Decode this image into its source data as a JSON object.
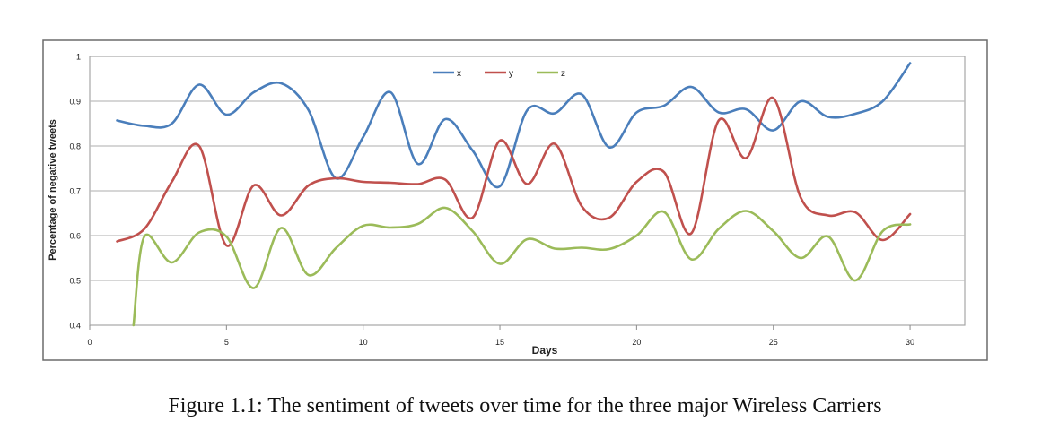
{
  "figure": {
    "caption": "Figure 1.1: The sentiment of tweets over time for the three major Wireless Carriers"
  },
  "chart_data": {
    "type": "line",
    "title": "",
    "xlabel": "Days",
    "ylabel": "Percentage of negative tweets",
    "xlim": [
      0,
      32
    ],
    "ylim": [
      0.4,
      1.0
    ],
    "x_ticks": [
      0,
      5,
      10,
      15,
      20,
      25,
      30
    ],
    "x_tick_labels": [
      "0",
      "5",
      "10",
      "15",
      "20",
      "25",
      "30"
    ],
    "y_ticks": [
      0.4,
      0.5,
      0.6,
      0.7,
      0.8,
      0.9,
      1.0
    ],
    "y_tick_labels": [
      "0.4",
      "0.5",
      "0.6",
      "0.7",
      "0.8",
      "0.9",
      "1"
    ],
    "grid": true,
    "legend_position": "top-center",
    "series": [
      {
        "name": "x",
        "color": "#4a7ebb",
        "points": [
          [
            1,
            0.857
          ],
          [
            2,
            0.845
          ],
          [
            3,
            0.85
          ],
          [
            4,
            0.937
          ],
          [
            5,
            0.87
          ],
          [
            6,
            0.92
          ],
          [
            7,
            0.94
          ],
          [
            8,
            0.88
          ],
          [
            9,
            0.728
          ],
          [
            10,
            0.82
          ],
          [
            11,
            0.92
          ],
          [
            12,
            0.76
          ],
          [
            13,
            0.86
          ],
          [
            14,
            0.79
          ],
          [
            15,
            0.71
          ],
          [
            16,
            0.88
          ],
          [
            17,
            0.873
          ],
          [
            18,
            0.915
          ],
          [
            19,
            0.797
          ],
          [
            20,
            0.875
          ],
          [
            21,
            0.89
          ],
          [
            22,
            0.932
          ],
          [
            23,
            0.875
          ],
          [
            24,
            0.882
          ],
          [
            25,
            0.835
          ],
          [
            26,
            0.9
          ],
          [
            27,
            0.865
          ],
          [
            28,
            0.872
          ],
          [
            29,
            0.9
          ],
          [
            30,
            0.985
          ]
        ]
      },
      {
        "name": "y",
        "color": "#c0504d",
        "points": [
          [
            1,
            0.587
          ],
          [
            2,
            0.615
          ],
          [
            3,
            0.72
          ],
          [
            4,
            0.8
          ],
          [
            5,
            0.578
          ],
          [
            6,
            0.712
          ],
          [
            7,
            0.645
          ],
          [
            8,
            0.712
          ],
          [
            9,
            0.728
          ],
          [
            10,
            0.72
          ],
          [
            11,
            0.718
          ],
          [
            12,
            0.715
          ],
          [
            13,
            0.725
          ],
          [
            14,
            0.64
          ],
          [
            15,
            0.812
          ],
          [
            16,
            0.715
          ],
          [
            17,
            0.805
          ],
          [
            18,
            0.665
          ],
          [
            19,
            0.64
          ],
          [
            20,
            0.72
          ],
          [
            21,
            0.742
          ],
          [
            22,
            0.605
          ],
          [
            23,
            0.857
          ],
          [
            24,
            0.773
          ],
          [
            25,
            0.907
          ],
          [
            26,
            0.685
          ],
          [
            27,
            0.645
          ],
          [
            28,
            0.652
          ],
          [
            29,
            0.59
          ],
          [
            30,
            0.648
          ]
        ]
      },
      {
        "name": "z",
        "color": "#9bbb59",
        "points": [
          [
            1.6,
            0.4
          ],
          [
            2,
            0.598
          ],
          [
            3,
            0.54
          ],
          [
            4,
            0.607
          ],
          [
            5,
            0.598
          ],
          [
            6,
            0.483
          ],
          [
            7,
            0.617
          ],
          [
            8,
            0.512
          ],
          [
            9,
            0.572
          ],
          [
            10,
            0.622
          ],
          [
            11,
            0.618
          ],
          [
            12,
            0.626
          ],
          [
            13,
            0.662
          ],
          [
            14,
            0.61
          ],
          [
            15,
            0.537
          ],
          [
            16,
            0.592
          ],
          [
            17,
            0.571
          ],
          [
            18,
            0.573
          ],
          [
            19,
            0.57
          ],
          [
            20,
            0.6
          ],
          [
            21,
            0.653
          ],
          [
            22,
            0.547
          ],
          [
            23,
            0.615
          ],
          [
            24,
            0.655
          ],
          [
            25,
            0.61
          ],
          [
            26,
            0.55
          ],
          [
            27,
            0.598
          ],
          [
            28,
            0.5
          ],
          [
            29,
            0.61
          ],
          [
            30,
            0.625
          ]
        ]
      }
    ]
  }
}
